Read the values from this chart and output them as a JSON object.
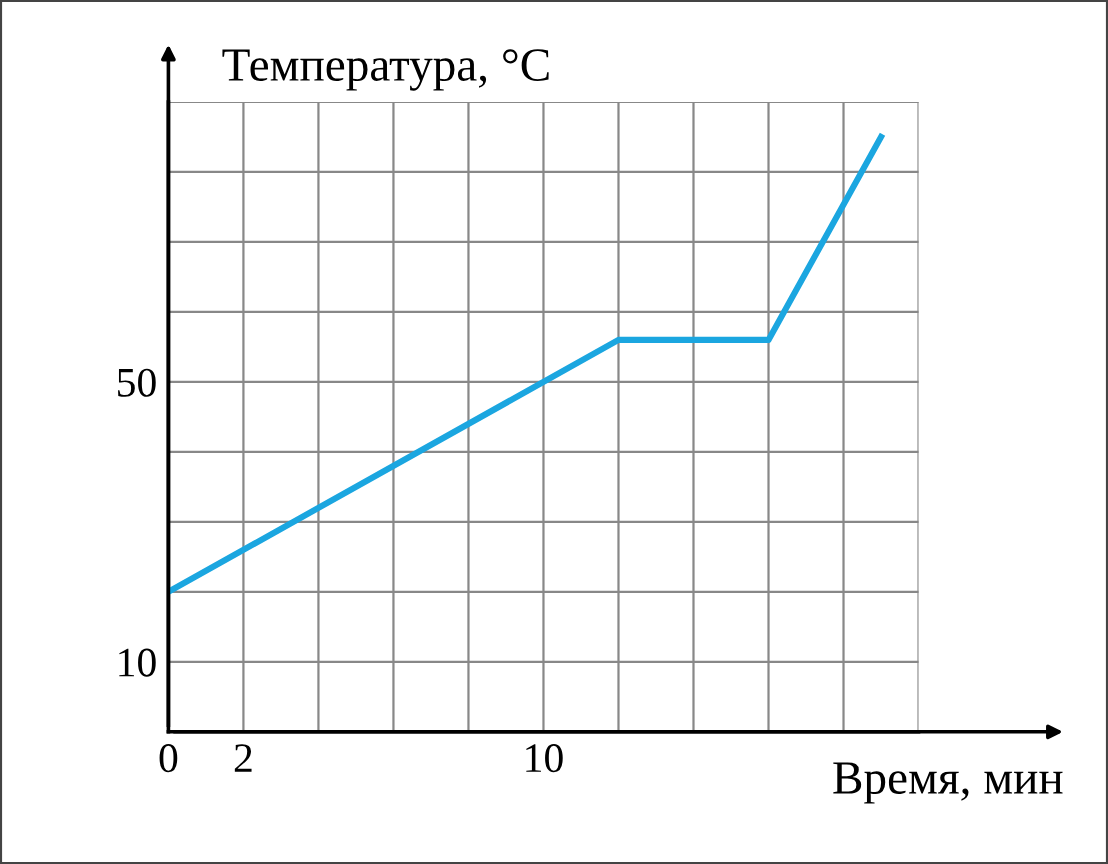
{
  "chart_data": {
    "type": "line",
    "xlabel": "Время, мин",
    "ylabel": "Температура, °C",
    "x": [
      0,
      12,
      16,
      19
    ],
    "series": [
      {
        "color": "#1ba6e0",
        "values": [
          20,
          56,
          56,
          85
        ]
      }
    ],
    "xlim": [
      0,
      20
    ],
    "ylim": [
      0,
      90
    ],
    "xticks": [
      {
        "value": 0,
        "label": "0"
      },
      2,
      {
        "value": 4,
        "label": null
      },
      {
        "value": 6,
        "label": null
      },
      {
        "value": 8,
        "label": null
      },
      10,
      {
        "value": 12,
        "label": null
      },
      {
        "value": 14,
        "label": null
      },
      {
        "value": 16,
        "label": null
      },
      {
        "value": 18,
        "label": null
      },
      {
        "value": 20,
        "label": null
      }
    ],
    "yticks": [
      {
        "value": 0,
        "label": null
      },
      10,
      {
        "value": 20,
        "label": null
      },
      {
        "value": 30,
        "label": null
      },
      {
        "value": 40,
        "label": null
      },
      50,
      {
        "value": 60,
        "label": null
      },
      {
        "value": 70,
        "label": null
      },
      {
        "value": 80,
        "label": null
      },
      {
        "value": 90,
        "label": null
      }
    ],
    "grid": true,
    "marker": "none",
    "line_style": "solid"
  }
}
